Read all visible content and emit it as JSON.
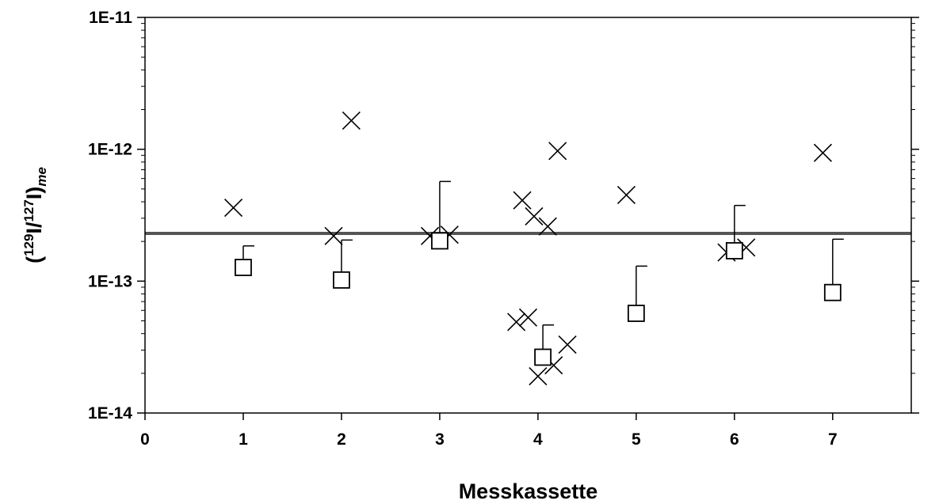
{
  "chart_data": {
    "type": "scatter",
    "title": "",
    "xlabel": "Messkassette",
    "ylabel": {
      "open": "(",
      "sup1": "129",
      "mid": "I/",
      "sup2": "127",
      "close": "I)",
      "sub": "me"
    },
    "xlim": [
      0,
      7.8
    ],
    "ylim": [
      1e-14,
      1e-11
    ],
    "yscale": "log",
    "x_ticks": [
      0,
      1,
      2,
      3,
      4,
      5,
      6,
      7
    ],
    "x_tick_labels": [
      "0",
      "1",
      "2",
      "3",
      "4",
      "5",
      "6",
      "7"
    ],
    "y_ticks": [
      1e-14,
      1e-13,
      1e-12,
      1e-11
    ],
    "y_tick_labels": [
      "1E-14",
      "1E-13",
      "1E-12",
      "1E-11"
    ],
    "grid": false,
    "reference_line": {
      "y": 2.3e-13
    },
    "series": [
      {
        "marker": "x",
        "points": [
          {
            "x": 0.9,
            "y": 3.6e-13
          },
          {
            "x": 1.92,
            "y": 2.2e-13
          },
          {
            "x": 2.1,
            "y": 1.65e-12
          },
          {
            "x": 2.9,
            "y": 2.2e-13
          },
          {
            "x": 3.1,
            "y": 2.25e-13
          },
          {
            "x": 3.78,
            "y": 4.9e-14
          },
          {
            "x": 3.84,
            "y": 4.1e-13
          },
          {
            "x": 3.9,
            "y": 5.3e-14
          },
          {
            "x": 3.96,
            "y": 3.1e-13
          },
          {
            "x": 4.0,
            "y": 1.9e-14
          },
          {
            "x": 4.1,
            "y": 2.6e-13
          },
          {
            "x": 4.16,
            "y": 2.3e-14
          },
          {
            "x": 4.2,
            "y": 9.7e-13
          },
          {
            "x": 4.3,
            "y": 3.3e-14
          },
          {
            "x": 4.9,
            "y": 4.5e-13
          },
          {
            "x": 5.92,
            "y": 1.65e-13
          },
          {
            "x": 6.12,
            "y": 1.8e-13
          },
          {
            "x": 6.9,
            "y": 9.4e-13
          }
        ]
      },
      {
        "marker": "square",
        "points": [
          {
            "x": 1.0,
            "y": 1.27e-13,
            "err_upper": 1.85e-13
          },
          {
            "x": 2.0,
            "y": 1.02e-13,
            "err_upper": 2.05e-13
          },
          {
            "x": 3.0,
            "y": 2.02e-13,
            "err_upper": 5.7e-13
          },
          {
            "x": 4.05,
            "y": 2.65e-14,
            "err_upper": 4.65e-14
          },
          {
            "x": 5.0,
            "y": 5.7e-14,
            "err_upper": 1.3e-13
          },
          {
            "x": 6.0,
            "y": 1.7e-13,
            "err_upper": 3.75e-13
          },
          {
            "x": 7.0,
            "y": 8.2e-14,
            "err_upper": 2.08e-13
          }
        ]
      }
    ]
  }
}
